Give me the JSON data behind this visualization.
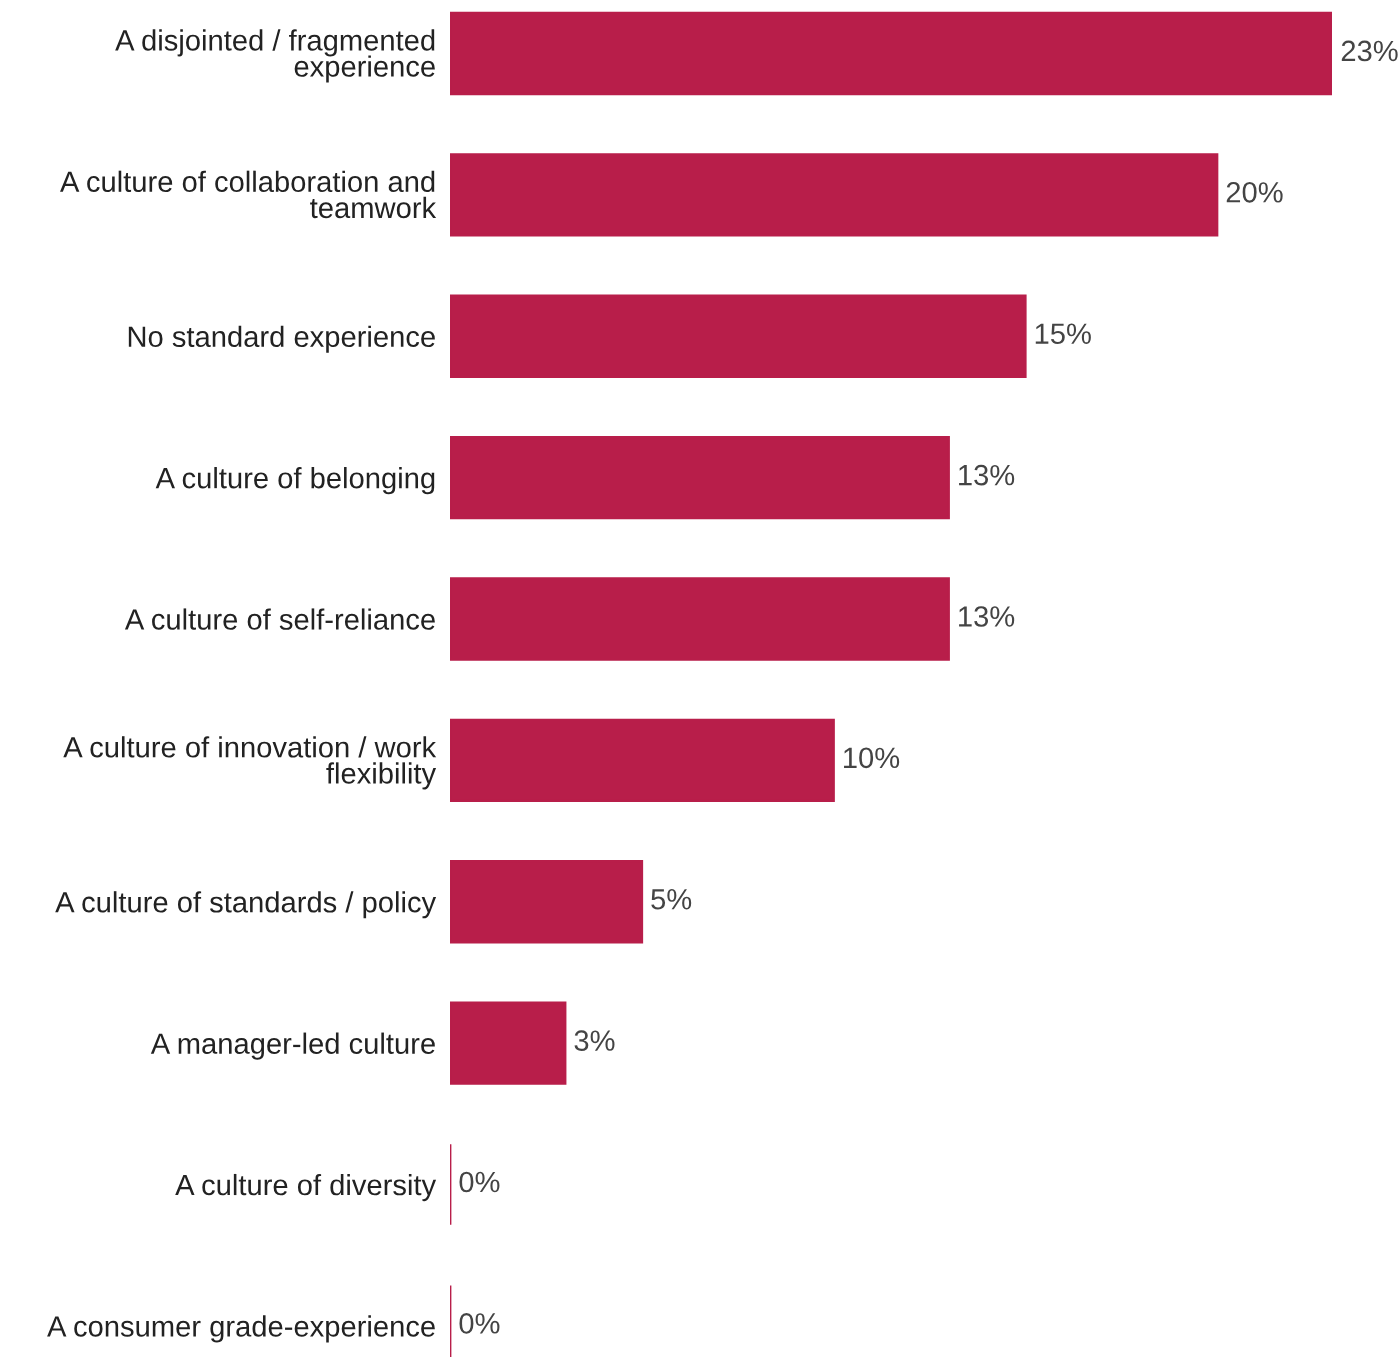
{
  "chart_data": {
    "type": "bar",
    "orientation": "horizontal",
    "categories": [
      "A disjointed / fragmented\nexperience",
      "A culture of collaboration and\nteamwork",
      "No standard experience",
      "A culture of belonging",
      "A culture of self-reliance",
      "A culture of innovation / work\nflexibility",
      "A culture of standards / policy",
      "A manager-led culture",
      "A culture of diversity",
      "A consumer grade-experience"
    ],
    "values": [
      23,
      20,
      15,
      13,
      13,
      10,
      5,
      3,
      0,
      0
    ],
    "value_labels": [
      "23%",
      "20%",
      "15%",
      "13%",
      "13%",
      "10%",
      "5%",
      "3%",
      "0%",
      "0%"
    ],
    "color": "#b81e4a",
    "tick_labels": "y"
  }
}
